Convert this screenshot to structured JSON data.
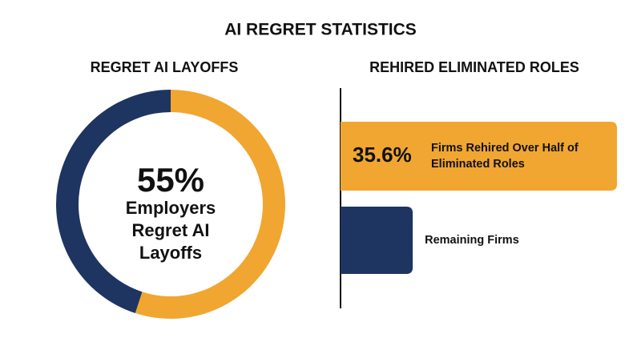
{
  "title": "AI REGRET STATISTICS",
  "chart_data": [
    {
      "type": "pie",
      "title": "REGRET AI LAYOFFS",
      "categories": [
        "Employers Regret AI Layoffs",
        null
      ],
      "values": [
        55,
        45
      ],
      "value_labels": [
        "55%",
        null
      ],
      "colors": [
        "#F0A630",
        "#1E3461"
      ],
      "donut": true
    },
    {
      "type": "hbar",
      "title": "REHIRED ELIMINATED ROLES",
      "categories": [
        "Firms Rehired Over Half of Eliminated Roles",
        "Remaining Firms"
      ],
      "values": [
        35.6,
        9.3
      ],
      "value_labels": [
        "35.6%",
        null
      ],
      "colors": [
        "#F0A630",
        "#1E3461"
      ],
      "xlim": [
        0,
        35.6
      ]
    }
  ]
}
